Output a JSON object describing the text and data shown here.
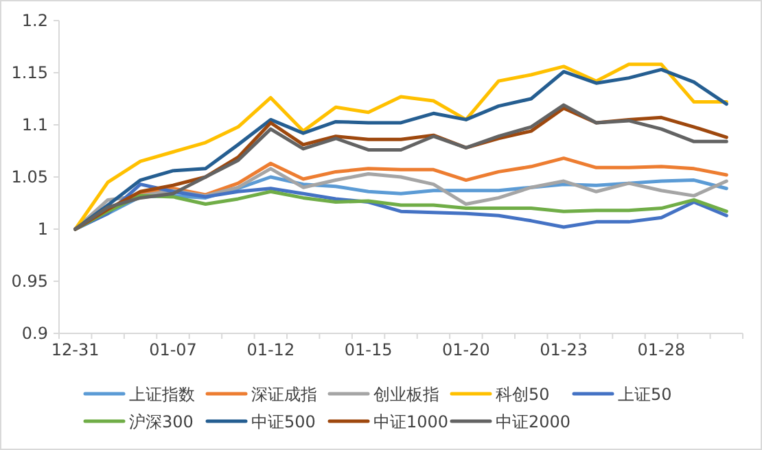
{
  "chart_data": {
    "type": "line",
    "categories": [
      "12-31",
      null,
      null,
      "01-07",
      null,
      null,
      "01-12",
      null,
      null,
      "01-15",
      null,
      null,
      "01-20",
      null,
      null,
      "01-23",
      null,
      null,
      "01-28",
      null,
      null
    ],
    "ylim": [
      0.9,
      1.2
    ],
    "yticks": [
      0.9,
      0.95,
      1,
      1.05,
      1.1,
      1.15,
      1.2
    ],
    "grid": false,
    "legend": "bottom",
    "marker": "none",
    "line_style": "solid",
    "series": [
      {
        "name": "上证指数",
        "color": "#5b9bd5",
        "values": [
          1.0,
          1.015,
          1.031,
          1.032,
          1.03,
          1.039,
          1.05,
          1.043,
          1.041,
          1.036,
          1.034,
          1.037,
          1.037,
          1.037,
          1.04,
          1.043,
          1.042,
          1.044,
          1.046,
          1.047,
          1.039
        ]
      },
      {
        "name": "深证成指",
        "color": "#ed7d31",
        "values": [
          1.0,
          1.018,
          1.034,
          1.039,
          1.033,
          1.044,
          1.063,
          1.048,
          1.055,
          1.058,
          1.057,
          1.057,
          1.047,
          1.055,
          1.06,
          1.068,
          1.059,
          1.059,
          1.06,
          1.058,
          1.052
        ]
      },
      {
        "name": "创业板指",
        "color": "#a5a5a5",
        "values": [
          1.0,
          1.028,
          1.032,
          1.037,
          1.032,
          1.04,
          1.058,
          1.04,
          1.047,
          1.053,
          1.05,
          1.043,
          1.024,
          1.03,
          1.04,
          1.046,
          1.036,
          1.044,
          1.037,
          1.032,
          1.046
        ]
      },
      {
        "name": "科创50",
        "color": "#ffc000",
        "values": [
          1.0,
          1.045,
          1.065,
          1.074,
          1.083,
          1.098,
          1.126,
          1.094,
          1.117,
          1.112,
          1.127,
          1.123,
          1.105,
          1.142,
          1.148,
          1.156,
          1.142,
          1.158,
          1.158,
          1.122,
          1.122
        ]
      },
      {
        "name": "上证50",
        "color": "#4472c4",
        "values": [
          1.0,
          1.015,
          1.043,
          1.036,
          1.031,
          1.036,
          1.039,
          1.034,
          1.029,
          1.026,
          1.017,
          1.016,
          1.015,
          1.013,
          1.008,
          1.002,
          1.007,
          1.007,
          1.011,
          1.026,
          1.013
        ]
      },
      {
        "name": "沪深300",
        "color": "#70ad47",
        "values": [
          1.0,
          1.017,
          1.032,
          1.031,
          1.024,
          1.029,
          1.036,
          1.03,
          1.026,
          1.027,
          1.023,
          1.023,
          1.02,
          1.02,
          1.02,
          1.017,
          1.018,
          1.018,
          1.02,
          1.028,
          1.017
        ]
      },
      {
        "name": "中证500",
        "color": "#255e91",
        "values": [
          1.0,
          1.023,
          1.047,
          1.056,
          1.058,
          1.081,
          1.105,
          1.092,
          1.103,
          1.102,
          1.102,
          1.111,
          1.105,
          1.118,
          1.125,
          1.151,
          1.14,
          1.145,
          1.153,
          1.141,
          1.12
        ]
      },
      {
        "name": "中证1000",
        "color": "#9e480e",
        "values": [
          1.0,
          1.019,
          1.036,
          1.042,
          1.05,
          1.069,
          1.102,
          1.081,
          1.089,
          1.086,
          1.086,
          1.09,
          1.078,
          1.087,
          1.094,
          1.116,
          1.102,
          1.105,
          1.107,
          1.098,
          1.088
        ]
      },
      {
        "name": "中证2000",
        "color": "#636363",
        "values": [
          1.0,
          1.021,
          1.03,
          1.034,
          1.05,
          1.066,
          1.096,
          1.077,
          1.087,
          1.076,
          1.076,
          1.089,
          1.078,
          1.089,
          1.098,
          1.119,
          1.102,
          1.104,
          1.096,
          1.084,
          1.084
        ]
      }
    ]
  }
}
